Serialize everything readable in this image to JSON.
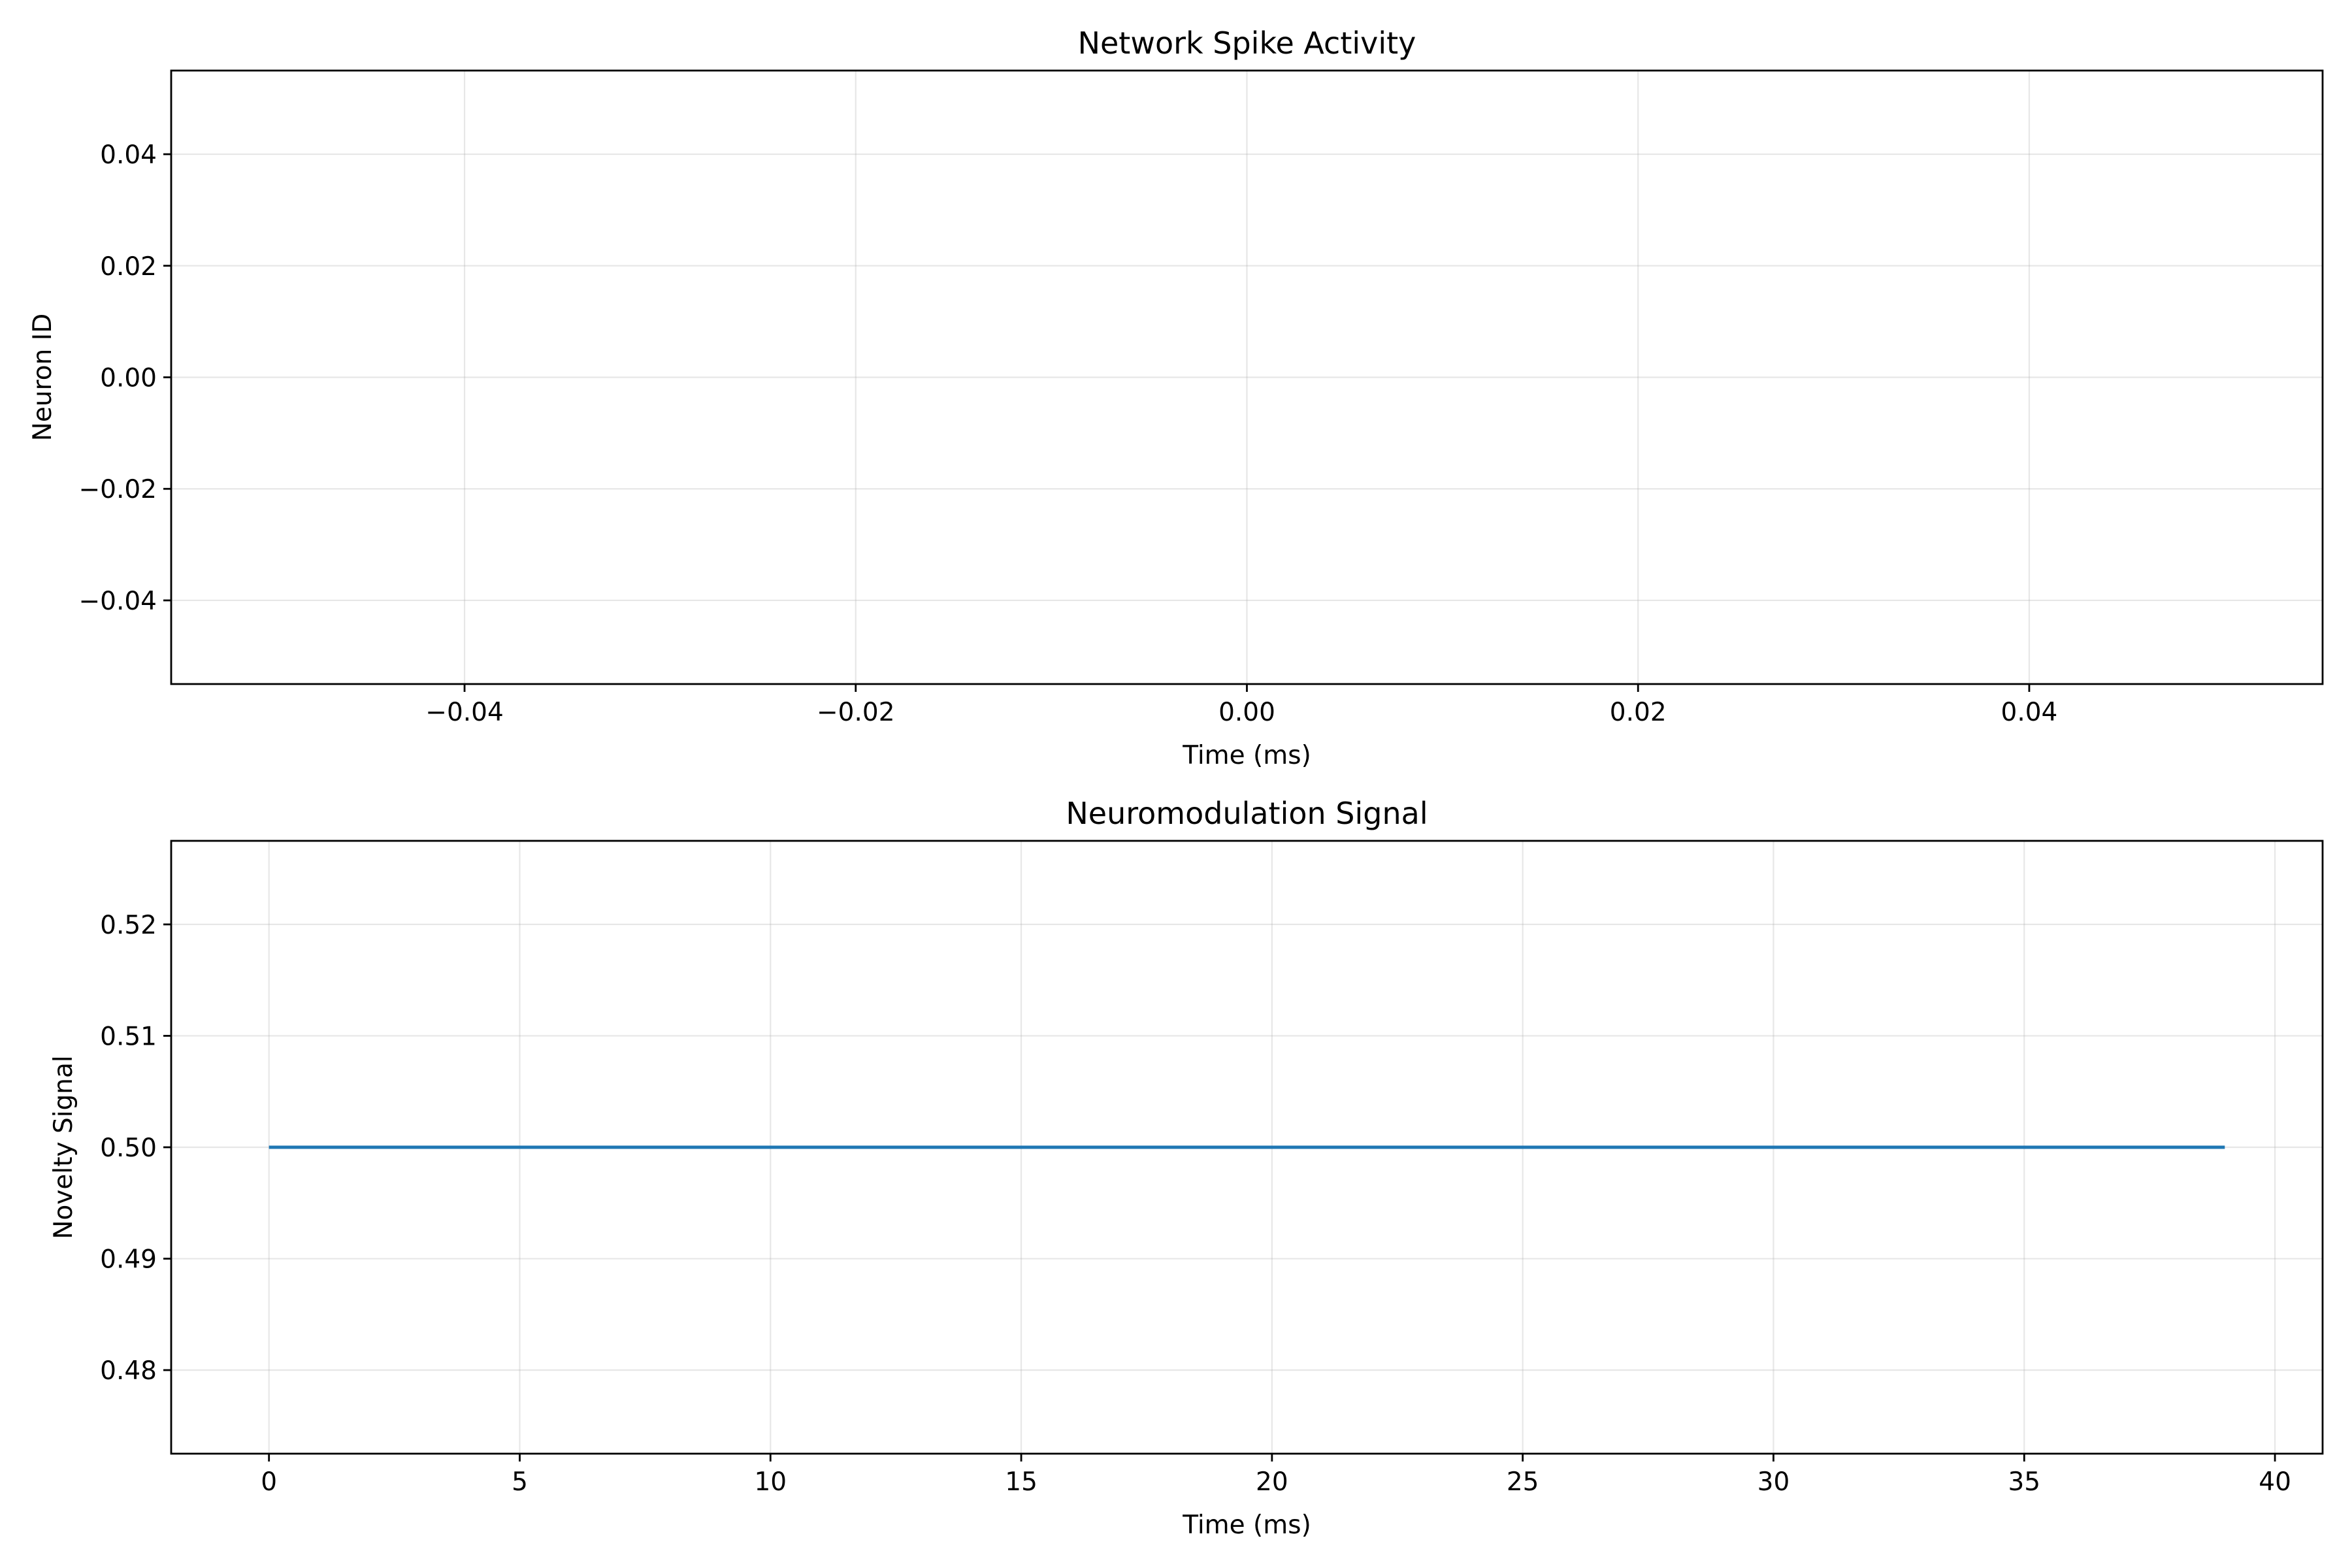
{
  "chart_data": [
    {
      "type": "scatter",
      "title": "Network Spike Activity",
      "xlabel": "Time (ms)",
      "ylabel": "Neuron ID",
      "xlim": [
        -0.055,
        0.055
      ],
      "ylim": [
        -0.055,
        0.055
      ],
      "xticks": [
        -0.04,
        -0.02,
        0.0,
        0.02,
        0.04
      ],
      "xtick_labels": [
        "−0.04",
        "−0.02",
        "0.00",
        "0.02",
        "0.04"
      ],
      "yticks": [
        0.04,
        0.02,
        0.0,
        -0.02,
        -0.04
      ],
      "ytick_labels": [
        "0.04",
        "0.02",
        "0.00",
        "−0.02",
        "−0.04"
      ],
      "grid": true,
      "points": []
    },
    {
      "type": "line",
      "title": "Neuromodulation Signal",
      "xlabel": "Time (ms)",
      "ylabel": "Novelty Signal",
      "xlim": [
        -1.95,
        40.95
      ],
      "ylim": [
        0.4725,
        0.5275
      ],
      "xticks": [
        0,
        5,
        10,
        15,
        20,
        25,
        30,
        35,
        40
      ],
      "xtick_labels": [
        "0",
        "5",
        "10",
        "15",
        "20",
        "25",
        "30",
        "35",
        "40"
      ],
      "yticks": [
        0.52,
        0.51,
        0.5,
        0.49,
        0.48
      ],
      "ytick_labels": [
        "0.52",
        "0.51",
        "0.50",
        "0.49",
        "0.48"
      ],
      "grid": true,
      "series": [
        {
          "color": "#1f77b4",
          "x": [
            0,
            39
          ],
          "y": [
            0.5,
            0.5
          ]
        }
      ]
    }
  ]
}
